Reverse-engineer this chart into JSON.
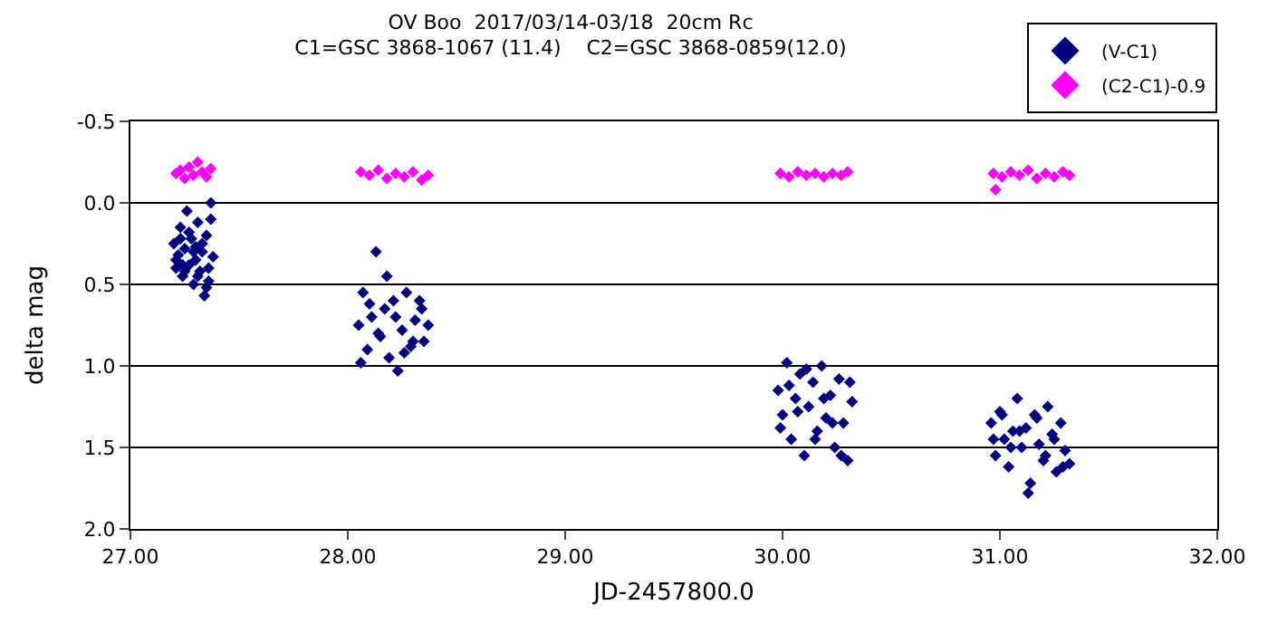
{
  "chart_data": {
    "type": "scatter",
    "title": "OV Boo  2017/03/14-03/18  20cm Rc\nC1=GSC 3868-1067 (11.4)    C2=GSC 3868-0859(12.0)",
    "xlabel": "JD-2457800.0",
    "ylabel": "delta mag",
    "xlim": [
      27.0,
      32.0
    ],
    "xticks": [
      {
        "value": 27,
        "label": "27.00"
      },
      {
        "value": 28,
        "label": "28.00"
      },
      {
        "value": 29,
        "label": "29.00"
      },
      {
        "value": 30,
        "label": "30.00"
      },
      {
        "value": 31,
        "label": "31.00"
      },
      {
        "value": 32,
        "label": "32.00"
      }
    ],
    "ylim": [
      2.0,
      -0.5
    ],
    "yticks": [
      {
        "value": -0.5,
        "label": "-0.5"
      },
      {
        "value": 0,
        "label": "0.0"
      },
      {
        "value": 0.5,
        "label": "0.5"
      },
      {
        "value": 1,
        "label": "1.0"
      },
      {
        "value": 1.5,
        "label": "1.5"
      },
      {
        "value": 2,
        "label": "2.0"
      }
    ],
    "grid": "y",
    "legend": "top right",
    "marker": "diamond",
    "series": [
      {
        "name": "(V-C1)",
        "color": "#000080",
        "x": [
          27.2,
          27.21,
          27.22,
          27.23,
          27.24,
          27.25,
          27.26,
          27.27,
          27.28,
          27.29,
          27.3,
          27.31,
          27.32,
          27.33,
          27.34,
          27.35,
          27.36,
          27.37,
          27.38,
          27.21,
          27.23,
          27.25,
          27.27,
          27.29,
          27.31,
          27.33,
          27.35,
          27.37,
          27.24,
          27.3,
          27.36,
          28.05,
          28.07,
          28.09,
          28.11,
          28.13,
          28.15,
          28.17,
          28.19,
          28.21,
          28.23,
          28.25,
          28.27,
          28.29,
          28.31,
          28.33,
          28.35,
          28.37,
          28.06,
          28.1,
          28.14,
          28.18,
          28.22,
          28.26,
          28.3,
          28.34,
          29.98,
          30.0,
          30.02,
          30.04,
          30.06,
          30.08,
          30.1,
          30.12,
          30.14,
          30.16,
          30.18,
          30.2,
          30.22,
          30.24,
          30.26,
          30.28,
          30.3,
          30.32,
          29.99,
          30.03,
          30.07,
          30.11,
          30.15,
          30.19,
          30.23,
          30.27,
          30.31,
          30.96,
          30.98,
          31.0,
          31.02,
          31.04,
          31.06,
          31.08,
          31.1,
          31.12,
          31.14,
          31.16,
          31.18,
          31.2,
          31.22,
          31.24,
          31.26,
          31.28,
          31.3,
          31.32,
          30.97,
          31.01,
          31.05,
          31.09,
          31.13,
          31.17,
          31.21,
          31.25,
          31.29
        ],
        "values": [
          0.25,
          0.4,
          0.32,
          0.15,
          0.45,
          0.28,
          0.05,
          0.38,
          0.22,
          0.5,
          0.35,
          0.12,
          0.42,
          0.3,
          0.57,
          0.2,
          0.48,
          0.0,
          0.33,
          0.35,
          0.22,
          0.42,
          0.18,
          0.3,
          0.45,
          0.25,
          0.52,
          0.1,
          0.38,
          0.27,
          0.4,
          0.75,
          0.55,
          0.9,
          0.7,
          0.3,
          0.82,
          0.65,
          0.95,
          0.6,
          1.03,
          0.78,
          0.55,
          0.88,
          0.72,
          0.6,
          0.85,
          0.75,
          0.98,
          0.62,
          0.8,
          0.45,
          0.7,
          0.92,
          0.85,
          0.65,
          1.15,
          1.3,
          0.98,
          1.45,
          1.2,
          1.05,
          1.55,
          1.25,
          1.1,
          1.4,
          1.0,
          1.32,
          1.18,
          1.5,
          1.08,
          1.35,
          1.58,
          1.22,
          1.38,
          1.12,
          1.28,
          1.02,
          1.45,
          1.2,
          1.35,
          1.55,
          1.1,
          1.35,
          1.55,
          1.28,
          1.45,
          1.62,
          1.4,
          1.2,
          1.5,
          1.38,
          1.72,
          1.3,
          1.48,
          1.58,
          1.25,
          1.42,
          1.65,
          1.35,
          1.52,
          1.6,
          1.45,
          1.3,
          1.5,
          1.4,
          1.78,
          1.32,
          1.55,
          1.45,
          1.62
        ]
      },
      {
        "name": "(C2-C1)-0.9",
        "color": "#ff00ff",
        "x": [
          27.21,
          27.23,
          27.25,
          27.27,
          27.29,
          27.31,
          27.33,
          27.35,
          27.37,
          28.06,
          28.1,
          28.14,
          28.18,
          28.22,
          28.26,
          28.3,
          28.34,
          28.37,
          29.99,
          30.03,
          30.07,
          30.11,
          30.15,
          30.19,
          30.23,
          30.27,
          30.3,
          30.97,
          30.98,
          31.01,
          31.05,
          31.09,
          31.13,
          31.17,
          31.21,
          31.25,
          31.29,
          31.32
        ],
        "values": [
          -0.18,
          -0.2,
          -0.15,
          -0.22,
          -0.17,
          -0.25,
          -0.19,
          -0.16,
          -0.21,
          -0.19,
          -0.17,
          -0.2,
          -0.15,
          -0.18,
          -0.16,
          -0.19,
          -0.14,
          -0.17,
          -0.18,
          -0.16,
          -0.19,
          -0.17,
          -0.18,
          -0.16,
          -0.18,
          -0.17,
          -0.19,
          -0.18,
          -0.08,
          -0.16,
          -0.19,
          -0.17,
          -0.2,
          -0.15,
          -0.18,
          -0.16,
          -0.19,
          -0.17
        ]
      }
    ]
  }
}
